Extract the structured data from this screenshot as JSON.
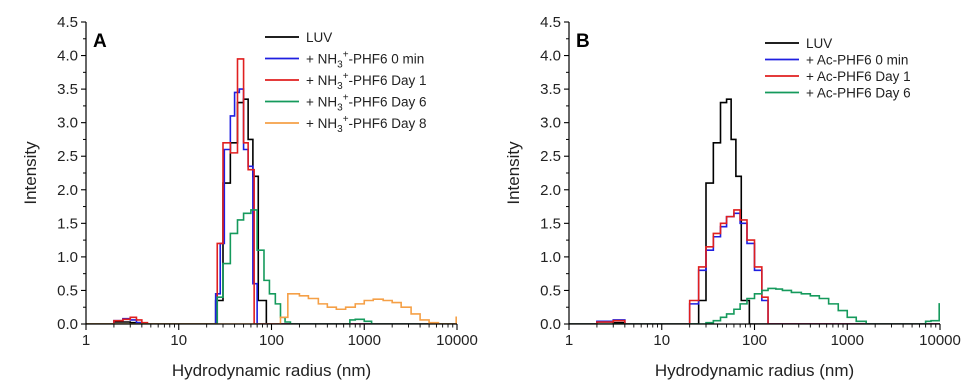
{
  "chart_data": [
    {
      "type": "line",
      "panel_label": "A",
      "xlabel": "Hydrodynamic radius (nm)",
      "ylabel": "Intensity",
      "xscale": "log",
      "xlim": [
        1,
        10000
      ],
      "ylim": [
        0,
        4.5
      ],
      "xticks": [
        {
          "v": 1,
          "label": "1"
        },
        {
          "v": 10,
          "label": "10"
        },
        {
          "v": 100,
          "label": "100"
        },
        {
          "v": 1000,
          "label": "1000"
        },
        {
          "v": 10000,
          "label": "10000"
        }
      ],
      "yticks": [
        {
          "v": 0,
          "label": "0.0"
        },
        {
          "v": 0.5,
          "label": "0.5"
        },
        {
          "v": 1,
          "label": "1.0"
        },
        {
          "v": 1.5,
          "label": "1.5"
        },
        {
          "v": 2,
          "label": "2.0"
        },
        {
          "v": 2.5,
          "label": "2.5"
        },
        {
          "v": 3,
          "label": "3.0"
        },
        {
          "v": 3.5,
          "label": "3.5"
        },
        {
          "v": 4,
          "label": "4.0"
        },
        {
          "v": 4.5,
          "label": "4.5"
        }
      ],
      "legend_position": "top-right",
      "series": [
        {
          "name": "LUV",
          "name_sup": "",
          "name_tail": "",
          "color": "#000000",
          "x": [
            1,
            2,
            3,
            4,
            25,
            30,
            36,
            43,
            50,
            56,
            63,
            72,
            88,
            10000
          ],
          "y": [
            0,
            0.03,
            0.02,
            0,
            0.35,
            2.1,
            2.7,
            3.3,
            3.35,
            2.75,
            2.2,
            0.35,
            0,
            0
          ]
        },
        {
          "name": "+ NH",
          "name_sup": "3",
          "name_sup2": "+",
          "name_tail": "-PHF6 0 min",
          "color": "#1f1fe0",
          "x": [
            1,
            2,
            2.5,
            3,
            3.5,
            4,
            25,
            28,
            31,
            36,
            40,
            45,
            50,
            56,
            63,
            70,
            10000
          ],
          "y": [
            0,
            0.05,
            0.08,
            0.06,
            0.02,
            0,
            0.45,
            1.2,
            2.6,
            3.1,
            3.45,
            3.5,
            2.6,
            2.35,
            0.6,
            0,
            0
          ]
        },
        {
          "name": "+ NH",
          "name_sup": "3",
          "name_sup2": "+",
          "name_tail": "-PHF6 Day 1",
          "color": "#e01f1f",
          "x": [
            1,
            2,
            2.5,
            3,
            3.5,
            4,
            4.6,
            26,
            30,
            36,
            43,
            50,
            56,
            65,
            70,
            10000
          ],
          "y": [
            0,
            0.05,
            0.07,
            0.1,
            0.06,
            0.02,
            0,
            1.2,
            2.7,
            2.55,
            3.95,
            2.7,
            2.3,
            0,
            0,
            0
          ]
        },
        {
          "name": "+ NH",
          "name_sup": "3",
          "name_sup2": "+",
          "name_tail": "-PHF6 Day 6",
          "color": "#159a5c",
          "x": [
            1,
            26,
            30,
            36,
            43,
            50,
            60,
            70,
            83,
            95,
            110,
            125,
            140,
            160,
            700,
            800,
            1000,
            1200,
            10000
          ],
          "y": [
            0,
            0.4,
            0.9,
            1.35,
            1.55,
            1.65,
            1.7,
            1.1,
            0.65,
            0.45,
            0.3,
            0.1,
            0.03,
            0,
            0.06,
            0.07,
            0.04,
            0,
            0
          ]
        },
        {
          "name": "+ NH",
          "name_sup": "3",
          "name_sup2": "+",
          "name_tail": "-PHF6 Day 8",
          "color": "#f5a047",
          "x": [
            1,
            125,
            150,
            200,
            250,
            320,
            400,
            500,
            630,
            800,
            1000,
            1250,
            1600,
            2000,
            2500,
            3200,
            4000,
            5000,
            6300,
            8000,
            9800,
            10000
          ],
          "y": [
            0,
            0.1,
            0.45,
            0.42,
            0.38,
            0.3,
            0.25,
            0.22,
            0.25,
            0.3,
            0.35,
            0.37,
            0.35,
            0.32,
            0.25,
            0.15,
            0.06,
            0.02,
            0,
            0,
            0.1,
            0.1
          ]
        }
      ]
    },
    {
      "type": "line",
      "panel_label": "B",
      "xlabel": "Hydrodynamic radius (nm)",
      "ylabel": "Intensity",
      "xscale": "log",
      "xlim": [
        1,
        10000
      ],
      "ylim": [
        0,
        4.5
      ],
      "xticks": [
        {
          "v": 1,
          "label": "1"
        },
        {
          "v": 10,
          "label": "10"
        },
        {
          "v": 100,
          "label": "100"
        },
        {
          "v": 1000,
          "label": "1000"
        },
        {
          "v": 10000,
          "label": "10000"
        }
      ],
      "yticks": [
        {
          "v": 0,
          "label": "0.0"
        },
        {
          "v": 0.5,
          "label": "0.5"
        },
        {
          "v": 1,
          "label": "1.0"
        },
        {
          "v": 1.5,
          "label": "1.5"
        },
        {
          "v": 2,
          "label": "2.0"
        },
        {
          "v": 2.5,
          "label": "2.5"
        },
        {
          "v": 3,
          "label": "3.0"
        },
        {
          "v": 3.5,
          "label": "3.5"
        },
        {
          "v": 4,
          "label": "4.0"
        },
        {
          "v": 4.5,
          "label": "4.5"
        }
      ],
      "legend_position": "top-right",
      "series": [
        {
          "name": "LUV",
          "name_tail": "",
          "color": "#000000",
          "x": [
            1,
            2,
            3,
            4,
            25,
            30,
            36,
            43,
            50,
            56,
            63,
            72,
            88,
            10000
          ],
          "y": [
            0,
            0.03,
            0.02,
            0,
            0.35,
            2.1,
            2.7,
            3.3,
            3.35,
            2.75,
            2.2,
            0.35,
            0,
            0
          ]
        },
        {
          "name": "+ Ac-PHF6 0 min",
          "name_tail": "",
          "color": "#1f1fe0",
          "x": [
            1,
            2,
            3,
            4,
            20,
            25,
            30,
            36,
            43,
            50,
            60,
            70,
            83,
            100,
            120,
            140,
            10000
          ],
          "y": [
            0,
            0.04,
            0.06,
            0,
            0.3,
            0.8,
            1.1,
            1.3,
            1.45,
            1.6,
            1.65,
            1.5,
            1.2,
            0.8,
            0.35,
            0,
            0
          ]
        },
        {
          "name": "+ Ac-PHF6 Day 1",
          "name_tail": "",
          "color": "#e01f1f",
          "x": [
            1,
            2,
            3,
            4,
            20,
            25,
            30,
            36,
            43,
            50,
            60,
            70,
            83,
            100,
            120,
            140,
            10000
          ],
          "y": [
            0,
            0.03,
            0.05,
            0,
            0.35,
            0.85,
            1.15,
            1.35,
            1.5,
            1.6,
            1.7,
            1.55,
            1.25,
            0.85,
            0.4,
            0,
            0
          ]
        },
        {
          "name": "+ Ac-PHF6 Day 6",
          "name_tail": "",
          "color": "#159a5c",
          "x": [
            1,
            30,
            36,
            43,
            50,
            60,
            70,
            83,
            100,
            120,
            140,
            170,
            200,
            250,
            320,
            400,
            500,
            630,
            800,
            1000,
            1250,
            1600,
            2000,
            7000,
            8000,
            9800,
            10000
          ],
          "y": [
            0,
            0.02,
            0.05,
            0.1,
            0.15,
            0.22,
            0.3,
            0.38,
            0.45,
            0.5,
            0.53,
            0.52,
            0.5,
            0.47,
            0.45,
            0.42,
            0.38,
            0.3,
            0.2,
            0.1,
            0.04,
            0,
            0,
            0.04,
            0.05,
            0.3,
            0.3
          ]
        }
      ]
    }
  ]
}
